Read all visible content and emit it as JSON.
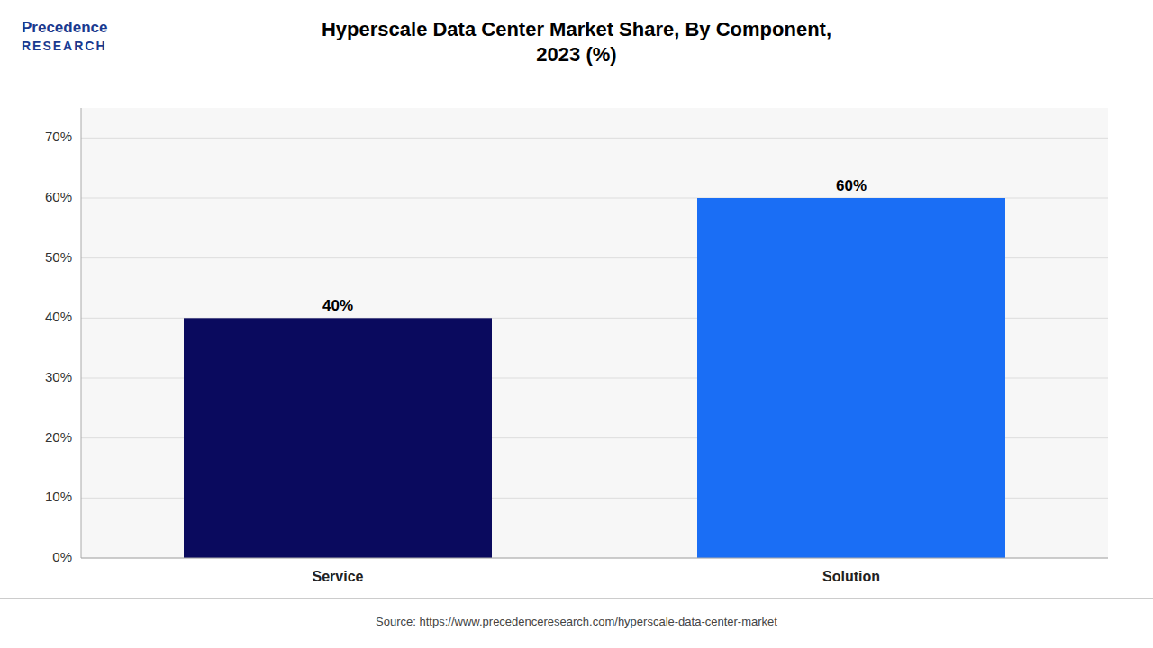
{
  "chart_data": {
    "type": "bar",
    "title": "Hyperscale Data Center Market Share, By Component,\n2023 (%)",
    "categories": [
      "Service",
      "Solution"
    ],
    "values": [
      40,
      60
    ],
    "value_labels": [
      "40%",
      "60%"
    ],
    "colors": [
      "#0a0a5e",
      "#1a6ef5"
    ],
    "data_labels": true,
    "ylim": [
      0,
      75
    ],
    "yticks": [
      {
        "value": 0,
        "label": "0%"
      },
      {
        "value": 10,
        "label": "10%"
      },
      {
        "value": 20,
        "label": "20%"
      },
      {
        "value": 30,
        "label": "30%"
      },
      {
        "value": 40,
        "label": "40%"
      },
      {
        "value": 50,
        "label": "50%"
      },
      {
        "value": 60,
        "label": "60%"
      },
      {
        "value": 70,
        "label": "70%"
      }
    ],
    "grid": true,
    "annotations": [
      "Source: https://www.precedenceresearch.com/hyperscale-data-center-market",
      "Precedence",
      "RESEARCH"
    ]
  }
}
